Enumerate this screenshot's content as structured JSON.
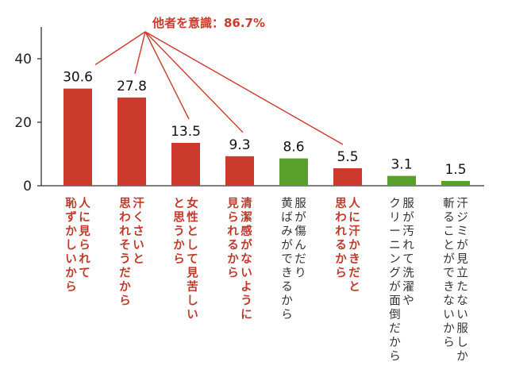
{
  "chart_data": {
    "type": "bar",
    "title": "",
    "xlabel": "",
    "ylabel": "",
    "ylim": [
      0,
      50
    ],
    "yticks": [
      0,
      20,
      40
    ],
    "grid": false,
    "categories": [
      {
        "label": "人に見られて恥ずかしいから",
        "lines": [
          "人に見られて",
          "恥ずかしいから"
        ],
        "value": 30.6,
        "value_label": "30.6",
        "group": "highlight"
      },
      {
        "label": "汗くさいと思われそうだから",
        "lines": [
          "汗くさいと",
          "思われそうだから"
        ],
        "value": 27.8,
        "value_label": "27.8",
        "group": "highlight"
      },
      {
        "label": "女性として見苦しいと思うから",
        "lines": [
          "女性として見苦しい",
          "と思うから"
        ],
        "value": 13.5,
        "value_label": "13.5",
        "group": "highlight"
      },
      {
        "label": "清潔感がないように見られるから",
        "lines": [
          "清潔感がないように",
          "見られるから"
        ],
        "value": 9.3,
        "value_label": "9.3",
        "group": "highlight"
      },
      {
        "label": "服が傷んだり黄ばみができるから",
        "lines": [
          "服が傷んだり",
          "黄ばみができるから"
        ],
        "value": 8.6,
        "value_label": "8.6",
        "group": "other"
      },
      {
        "label": "人に汗かきだと思われるから",
        "lines": [
          "人に汗かきだと",
          "思われるから"
        ],
        "value": 5.5,
        "value_label": "5.5",
        "group": "highlight"
      },
      {
        "label": "服が汚れて洗濯やクリーニングが面倒だから",
        "lines": [
          "服が汚れて洗濯や",
          "クリーニングが面倒だから"
        ],
        "value": 3.1,
        "value_label": "3.1",
        "group": "other"
      },
      {
        "label": "汗ジミが見立たない服しか斬ることができないから",
        "lines": [
          "汗ジミが見立たない服しか",
          "斬ることができないから"
        ],
        "value": 1.5,
        "value_label": "1.5",
        "group": "other"
      }
    ],
    "annotation": {
      "text": "他者を意識：86.7%",
      "points_to": [
        0,
        1,
        2,
        3,
        5
      ]
    },
    "colors": {
      "highlight": "#cc3a2e",
      "other": "#5aa02c",
      "annotation": "#cc3a2e",
      "highlight_text": "#c0392b",
      "other_text": "#333333",
      "axis": "#333333"
    }
  }
}
